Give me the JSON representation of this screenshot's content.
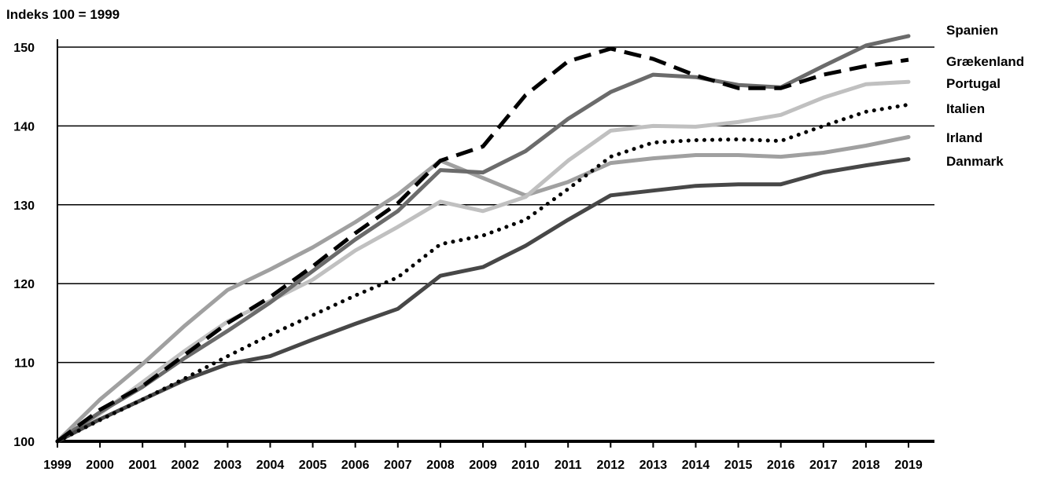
{
  "chart_data": {
    "type": "line",
    "title": "Indeks 100 = 1999",
    "xlabel": "",
    "ylabel": "",
    "categories": [
      "1999",
      "2000",
      "2001",
      "2002",
      "2003",
      "2004",
      "2005",
      "2006",
      "2007",
      "2008",
      "2009",
      "2010",
      "2011",
      "2012",
      "2013",
      "2014",
      "2015",
      "2016",
      "2017",
      "2018",
      "2019"
    ],
    "ylim": [
      100,
      150
    ],
    "yticks": [
      100,
      110,
      120,
      130,
      140,
      150
    ],
    "grid": "horizontal",
    "legend": "right, labels next to line ends",
    "series": [
      {
        "name": "Spanien",
        "color": "#6b6b6b",
        "style": "solid",
        "values": [
          100,
          103.7,
          106.9,
          110.6,
          114.0,
          117.6,
          121.6,
          125.6,
          129.2,
          134.4,
          134.1,
          136.8,
          140.9,
          144.3,
          146.5,
          146.2,
          145.2,
          144.9,
          147.6,
          150.2,
          151.4
        ]
      },
      {
        "name": "Grækenland",
        "color": "#000000",
        "style": "dashed",
        "values": [
          100,
          104.0,
          107.0,
          111.0,
          115.0,
          118.3,
          122.2,
          126.4,
          130.2,
          135.6,
          137.4,
          143.9,
          148.2,
          149.8,
          148.5,
          146.4,
          144.8,
          144.8,
          146.5,
          147.6,
          148.4
        ]
      },
      {
        "name": "Portugal",
        "color": "#c0c0c0",
        "style": "solid",
        "values": [
          100,
          103.5,
          107.5,
          111.5,
          115.2,
          117.8,
          120.5,
          124.2,
          127.2,
          130.4,
          129.2,
          131.0,
          135.6,
          139.4,
          140.0,
          139.9,
          140.5,
          141.4,
          143.6,
          145.3,
          145.6
        ]
      },
      {
        "name": "Italien",
        "color": "#000000",
        "style": "dotted",
        "values": [
          100,
          102.7,
          105.3,
          108.0,
          110.8,
          113.5,
          116.0,
          118.5,
          120.8,
          125.0,
          126.1,
          128.1,
          132.0,
          136.1,
          137.9,
          138.2,
          138.3,
          138.1,
          140.0,
          141.8,
          142.7
        ]
      },
      {
        "name": "Irland",
        "color": "#a0a0a0",
        "style": "solid",
        "values": [
          100,
          105.3,
          109.8,
          114.7,
          119.2,
          121.8,
          124.6,
          127.8,
          131.3,
          135.6,
          133.4,
          131.2,
          132.9,
          135.3,
          135.9,
          136.3,
          136.3,
          136.1,
          136.6,
          137.5,
          138.6
        ]
      },
      {
        "name": "Danmark",
        "color": "#474747",
        "style": "solid",
        "values": [
          100,
          102.8,
          105.3,
          107.8,
          109.8,
          110.8,
          112.9,
          114.9,
          116.8,
          121.0,
          122.1,
          124.8,
          128.1,
          131.2,
          131.8,
          132.4,
          132.6,
          132.6,
          134.1,
          135.0,
          135.8
        ]
      }
    ]
  }
}
